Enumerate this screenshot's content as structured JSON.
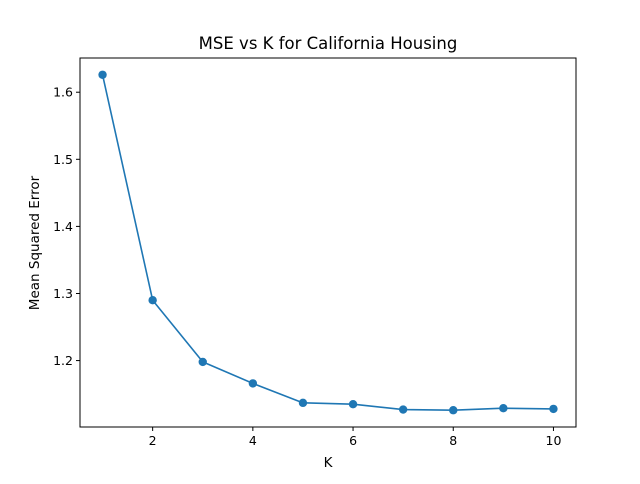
{
  "chart_data": {
    "type": "line",
    "title": "MSE vs K for California Housing",
    "xlabel": "K",
    "ylabel": "Mean Squared Error",
    "x": [
      1,
      2,
      3,
      4,
      5,
      6,
      7,
      8,
      9,
      10
    ],
    "series": [
      {
        "values": [
          1.626,
          1.29,
          1.198,
          1.166,
          1.137,
          1.135,
          1.127,
          1.126,
          1.129,
          1.128
        ],
        "color": "#1f77b4",
        "marker": "circle"
      }
    ],
    "xlim": [
      0.55,
      10.45
    ],
    "ylim": [
      1.101,
      1.651
    ],
    "xticks": [
      2,
      4,
      6,
      8,
      10
    ],
    "xtick_labels": [
      "2",
      "4",
      "6",
      "8",
      "10"
    ],
    "yticks": [
      1.2,
      1.3,
      1.4,
      1.5,
      1.6
    ],
    "ytick_labels": [
      "1.2",
      "1.3",
      "1.4",
      "1.5",
      "1.6"
    ],
    "grid": false,
    "legend": "none"
  }
}
